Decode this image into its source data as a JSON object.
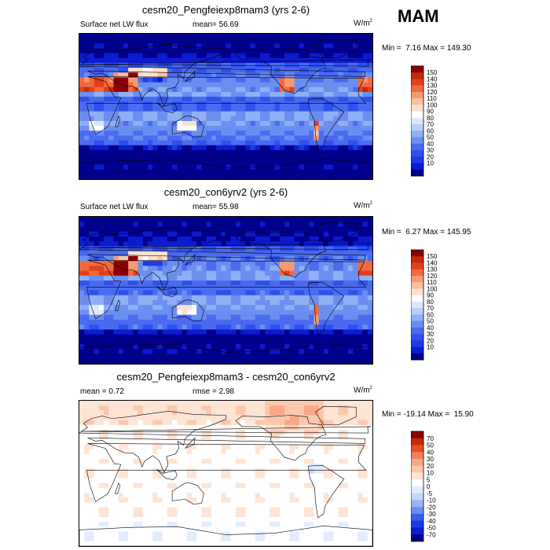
{
  "season": "MAM",
  "colors": {
    "abs_levels": [
      "#00008b",
      "#0b1bd0",
      "#1b3be8",
      "#3050ec",
      "#4a6bf0",
      "#6b8ef0",
      "#8fb0f5",
      "#b8d0f8",
      "#dde8fb",
      "#ffffff",
      "#fde0cf",
      "#fbc0a0",
      "#f79a72",
      "#f06a40",
      "#e2401a",
      "#c22a0a",
      "#8b0000"
    ],
    "diff_levels": [
      "#00008b",
      "#0b1bd0",
      "#1b3be8",
      "#3a5fec",
      "#6b8ef0",
      "#95b4f5",
      "#c1d6f9",
      "#e3ecfc",
      "#ffffff",
      "#fde4d4",
      "#fbc8ac",
      "#f8a884",
      "#f38056",
      "#e84e26",
      "#c82a0a",
      "#8b0000"
    ],
    "continent": "#000000"
  },
  "panels": [
    {
      "title": "cesm20_Pengfeiexp8mam3 (yrs 2-6)",
      "left_label": "Surface net LW flux",
      "mid_label": "mean=  56.69",
      "units": "W/m",
      "units_sup": "2",
      "minmax": "Min =  7.16 Max = 149.30",
      "colorbar_labels": [
        "150",
        "140",
        "130",
        "120",
        "110",
        "100",
        "90",
        "80",
        "70",
        "60",
        "50",
        "40",
        "30",
        "20",
        "10"
      ],
      "kind": "abs"
    },
    {
      "title": "cesm20_con6yrv2 (yrs 2-6)",
      "left_label": "Surface net LW flux",
      "mid_label": "mean=  55.98",
      "units": "W/m",
      "units_sup": "2",
      "minmax": "Min =  6.27 Max = 145.95",
      "colorbar_labels": [
        "150",
        "140",
        "130",
        "120",
        "110",
        "100",
        "90",
        "80",
        "70",
        "60",
        "50",
        "40",
        "30",
        "20",
        "10"
      ],
      "kind": "abs"
    },
    {
      "title": "cesm20_Pengfeiexp8mam3 - cesm20_con6yrv2",
      "left_label": "mean =   0.72",
      "mid_label": "rmse =   2.98",
      "units": "W/m",
      "units_sup": "2",
      "minmax": "Min = -19.14 Max =  15.90",
      "colorbar_labels": [
        "70",
        "50",
        "40",
        "30",
        "20",
        "10",
        "5",
        "0",
        "-5",
        "-10",
        "-20",
        "-30",
        "-40",
        "-50",
        "-70"
      ],
      "kind": "diff"
    }
  ]
}
